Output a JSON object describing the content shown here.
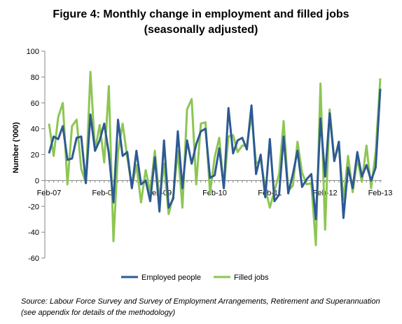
{
  "chart_data": {
    "type": "line",
    "title": [
      "Figure 4: Monthly change in employment and filled jobs",
      "(seasonally adjusted)"
    ],
    "ylabel": "Number ('000)",
    "xlabel": "",
    "ylim": [
      -60,
      100
    ],
    "yticks": [
      -60,
      -40,
      -20,
      0,
      20,
      40,
      60,
      80,
      100
    ],
    "x_tick_labels": [
      {
        "label": "Feb-07",
        "index": 0
      },
      {
        "label": "Feb-08",
        "index": 12
      },
      {
        "label": "Feb-09",
        "index": 24
      },
      {
        "label": "Feb-10",
        "index": 36
      },
      {
        "label": "Feb-11",
        "index": 48
      },
      {
        "label": "Feb-12",
        "index": 60
      },
      {
        "label": "Feb-13",
        "index": 72
      }
    ],
    "grid": false,
    "legend_position": "bottom",
    "series": [
      {
        "name": "Employed people",
        "color": "#2e5a93",
        "values": [
          21,
          34,
          32,
          42,
          16,
          17,
          33,
          34,
          -2,
          51,
          23,
          31,
          44,
          21,
          -17,
          47,
          19,
          22,
          -6,
          23,
          -3,
          0,
          -16,
          18,
          -24,
          31,
          -21,
          -14,
          38,
          -6,
          31,
          13,
          28,
          38,
          40,
          2,
          4,
          25,
          -6,
          56,
          21,
          31,
          33,
          24,
          58,
          5,
          20,
          -13,
          32,
          -16,
          -11,
          34,
          -10,
          5,
          23,
          -5,
          1,
          5,
          -30,
          48,
          3,
          52,
          15,
          30,
          -29,
          10,
          -6,
          22,
          3,
          12,
          0,
          10,
          71
        ]
      },
      {
        "name": "Filled jobs",
        "color": "#8dc653",
        "values": [
          44,
          19,
          49,
          60,
          -3,
          42,
          47,
          9,
          -2,
          84,
          23,
          43,
          14,
          73,
          -47,
          22,
          44,
          18,
          -5,
          12,
          -17,
          8,
          -9,
          23,
          -15,
          13,
          -26,
          -12,
          23,
          -21,
          55,
          63,
          -3,
          44,
          45,
          -10,
          18,
          33,
          -6,
          34,
          35,
          22,
          27,
          27,
          51,
          13,
          16,
          -6,
          -21,
          -8,
          5,
          46,
          -8,
          -4,
          30,
          6,
          -3,
          -2,
          -50,
          75,
          -38,
          55,
          16,
          27,
          -15,
          19,
          -9,
          17,
          -1,
          27,
          -6,
          22,
          79
        ]
      }
    ]
  },
  "source_text": "Source: Labour Force Survey and Survey of Employment Arrangements, Retirement and Superannuation (see appendix for details of the methodology)"
}
